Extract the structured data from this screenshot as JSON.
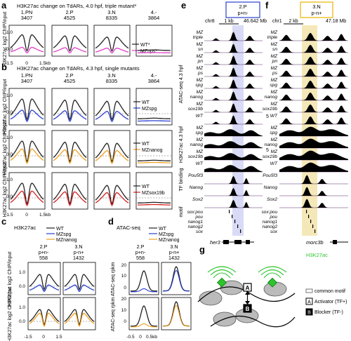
{
  "colors": {
    "black": "#222222",
    "magenta": "#e040c8",
    "blue": "#2a3fd0",
    "orange": "#f0a020",
    "red": "#d62020",
    "highlight_blue": "#c9ccf2",
    "highlight_yellow": "#f2e2a6",
    "green": "#2ec42e",
    "dashed": "#999999"
  },
  "panel_a": {
    "letter": "a",
    "title": "H3K27ac change on TdARs, 4.0 hpf, triple mutant*",
    "ylabel": "H3K27ac log2 ChIP/input",
    "groups": [
      {
        "name": "1.PN",
        "n": "3407"
      },
      {
        "name": "2.P",
        "n": "4525"
      },
      {
        "name": "3.N",
        "n": "8335"
      },
      {
        "name": "4.-",
        "n": "3864"
      }
    ],
    "legend": [
      "WT*",
      "MZnps*"
    ],
    "yticks": [
      "1.0",
      "0.0"
    ],
    "xticks": [
      "-1.5",
      "0",
      "1.5kb"
    ]
  },
  "panel_b": {
    "letter": "b",
    "title": "H3K27ac change on TdARs, 4.3 hpf, single mutants",
    "ylabel": "H3K27ac log2 ChIP/input",
    "groups": [
      {
        "name": "1.PN",
        "n": "3407"
      },
      {
        "name": "2.P",
        "n": "4525"
      },
      {
        "name": "3.N",
        "n": "8335"
      },
      {
        "name": "4.-",
        "n": "3864"
      }
    ],
    "legends": [
      [
        "WT",
        "MZspg"
      ],
      [
        "WT",
        "MZnanog"
      ],
      [
        "WT",
        "MZsox19b"
      ]
    ],
    "yticks": [
      "1.0",
      "0.0"
    ],
    "xticks": [
      "-1.5",
      "0",
      "1.5kb"
    ]
  },
  "panel_c": {
    "letter": "c",
    "title": "H3K27ac",
    "ylabel": "H3K27ac log2 ChIP/input",
    "legend": [
      "WT",
      "MZspg",
      "MZnanog"
    ],
    "groups": [
      {
        "name": "2.P",
        "sub": "p+n-",
        "n": "558"
      },
      {
        "name": "3.N",
        "sub": "p-n+",
        "n": "1432"
      }
    ],
    "yticks": [
      "1.0",
      "0.0"
    ],
    "xticks": [
      "-1.5",
      "0",
      "1.5"
    ]
  },
  "panel_d": {
    "letter": "d",
    "title": "ATAC-seq",
    "ylabel": "ATAC-seq rpkm",
    "legend": [
      "WT",
      "MZspg",
      "MZnanog"
    ],
    "groups": [
      {
        "name": "2.P",
        "sub": "p+n-",
        "n": "558"
      },
      {
        "name": "3.N",
        "sub": "p-n+",
        "n": "1432"
      }
    ],
    "yticks": [
      "20",
      "10",
      "0"
    ],
    "xticks": [
      "-0.5",
      "0",
      "0.5kb"
    ]
  },
  "panel_e": {
    "letter": "e",
    "box_label": "2.P",
    "box_sub": "p+n-",
    "chr": "chr8",
    "scale": "1 kb",
    "coord": "46.642 Mb",
    "gene": "her3"
  },
  "panel_f": {
    "letter": "f",
    "box_label": "3.N",
    "box_sub": "p-n+",
    "chr": "chr1",
    "scale": "2 kb",
    "coord": "47.18 Mb",
    "gene": "morc3b"
  },
  "tracks": {
    "section_atac": "ATAC-seq 4.3 hpf",
    "section_h3": "H3K27ac 4.3 hpf",
    "section_tf": "TF binding",
    "section_motif": "motif",
    "atac": [
      [
        "MZ",
        "triple"
      ],
      [
        "MZ",
        "sn"
      ],
      [
        "MZ",
        "pn"
      ],
      [
        "MZ",
        "ps"
      ],
      [
        "MZ",
        "spg"
      ],
      [
        "MZ",
        "nanog"
      ],
      [
        "MZ",
        "sox19b"
      ],
      [
        "WT",
        ""
      ]
    ],
    "h3": [
      [
        "MZ",
        "spg"
      ],
      [
        "MZ",
        "nanog"
      ],
      [
        "MZ",
        "sox19b"
      ],
      [
        "WT",
        ""
      ]
    ],
    "tf": [
      "Pou5f3",
      "Nanog",
      "Sox2"
    ],
    "motif": [
      "sox:pou",
      "pou",
      "nanog1",
      "nanog2",
      "sox"
    ],
    "scale5": "5"
  },
  "panel_g": {
    "letter": "g",
    "mark": "H3K27ac",
    "legend": [
      "common motif",
      "Activator (TF+)",
      "Blocker (TF-)"
    ],
    "box_a": "A",
    "box_b": "B"
  }
}
